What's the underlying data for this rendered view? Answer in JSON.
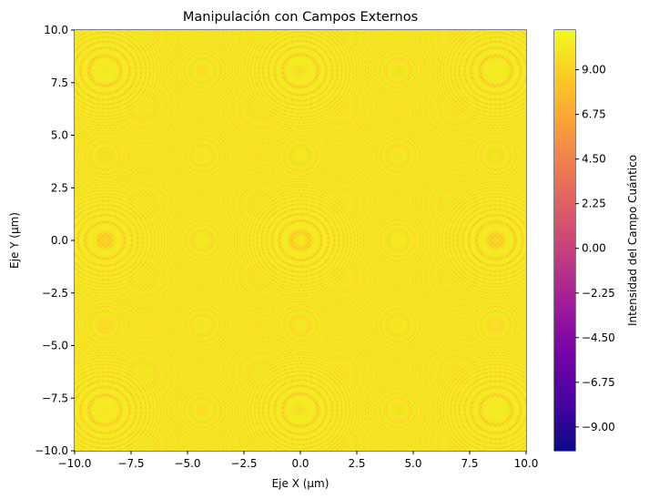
{
  "chart_data": {
    "type": "heatmap",
    "title": "Manipulación con Campos Externos",
    "xlabel": "Eje X (µm)",
    "ylabel": "Eje Y (µm)",
    "xlim": [
      -10,
      10
    ],
    "ylim": [
      -10,
      10
    ],
    "x_ticks": [
      -10,
      -7.5,
      -5,
      -2.5,
      0,
      2.5,
      5,
      7.5,
      10
    ],
    "y_ticks": [
      -10,
      -7.5,
      -5,
      -2.5,
      0,
      2.5,
      5,
      7.5,
      10
    ],
    "x_tick_labels": [
      "−10.0",
      "−7.5",
      "−5.0",
      "−2.5",
      "0.0",
      "2.5",
      "5.0",
      "7.5",
      "10.0"
    ],
    "y_tick_labels": [
      "−10.0",
      "−7.5",
      "−5.0",
      "−2.5",
      "0.0",
      "2.5",
      "5.0",
      "7.5",
      "10.0"
    ],
    "colormap": "plasma",
    "colorbar": {
      "label": "Intensidad del Campo Cuántico",
      "ticks": [
        -9,
        -6.75,
        -4.5,
        -2.25,
        0,
        2.25,
        4.5,
        6.75,
        9
      ],
      "tick_labels": [
        "−9.00",
        "−6.75",
        "−4.50",
        "−2.25",
        "0.00",
        "2.25",
        "4.50",
        "6.75",
        "9.00"
      ],
      "vmin": -10.2,
      "vmax": 11.0
    },
    "grid": false,
    "colors": {
      "plasma": [
        "#0d0887",
        "#46039f",
        "#7201a8",
        "#9c179e",
        "#bd3786",
        "#d8576b",
        "#ed7953",
        "#fb9f3a",
        "#fdca26",
        "#f0f921"
      ]
    }
  }
}
